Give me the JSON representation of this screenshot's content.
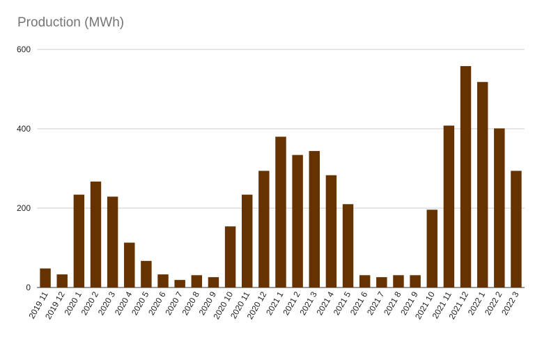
{
  "chart_data": {
    "type": "bar",
    "title": "Production (MWh)",
    "xlabel": "",
    "ylabel": "",
    "ylim": [
      0,
      600
    ],
    "yticks": [
      "0",
      "200",
      "400",
      "600"
    ],
    "grid": true,
    "legend": "none",
    "bar_color": "#663300",
    "grid_color": "#cccccc",
    "categories": [
      "2019 11",
      "2019 12",
      "2020 1",
      "2020 2",
      "2020 3",
      "2020 4",
      "2020 5",
      "2020 6",
      "2020 7",
      "2020 8",
      "2020 9",
      "2020 10",
      "2020 11",
      "2020 12",
      "2021 1",
      "2021 2",
      "2021 3",
      "2021 4",
      "2021 5",
      "2021 6",
      "2021 7",
      "2021 8",
      "2021 9",
      "2021 10",
      "2021 11",
      "2021 12",
      "2022 1",
      "2022 2",
      "2022 3"
    ],
    "values": [
      48,
      33,
      234,
      267,
      229,
      113,
      67,
      33,
      19,
      31,
      26,
      154,
      234,
      294,
      380,
      334,
      344,
      283,
      210,
      31,
      26,
      31,
      31,
      196,
      408,
      558,
      518,
      401,
      294
    ]
  }
}
